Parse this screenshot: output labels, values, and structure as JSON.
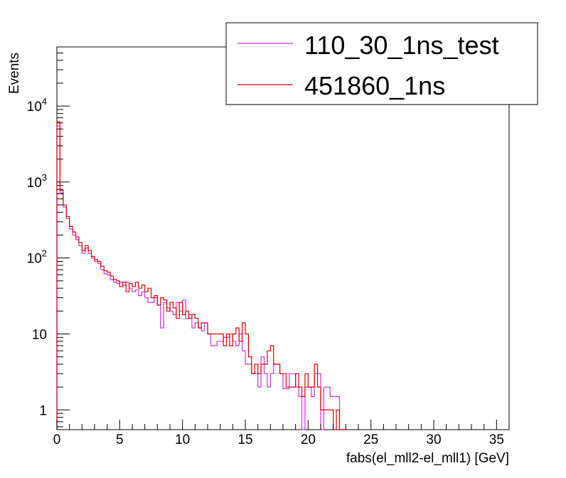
{
  "chart_data": {
    "type": "histogram",
    "title": "",
    "xlabel": "fabs(el_mll2-el_mll1) [GeV]",
    "ylabel": "Events",
    "xlim": [
      0,
      36
    ],
    "ylim": [
      0.55,
      60000
    ],
    "yscale": "log",
    "bin_width": 0.25,
    "grid": false,
    "legend_position": "top-right",
    "x_ticks": [
      {
        "value": 0,
        "label": "0"
      },
      {
        "value": 5,
        "label": "5"
      },
      {
        "value": 10,
        "label": "10"
      },
      {
        "value": 15,
        "label": "15"
      },
      {
        "value": 20,
        "label": "20"
      },
      {
        "value": 25,
        "label": "25"
      },
      {
        "value": 30,
        "label": "30"
      },
      {
        "value": 35,
        "label": "35"
      }
    ],
    "y_ticks": [
      {
        "value": 1,
        "base": "1",
        "exp": ""
      },
      {
        "value": 10,
        "base": "10",
        "exp": ""
      },
      {
        "value": 100,
        "base": "10",
        "exp": "2"
      },
      {
        "value": 1000,
        "base": "10",
        "exp": "3"
      },
      {
        "value": 10000,
        "base": "10",
        "exp": "4"
      }
    ],
    "series": [
      {
        "name": "110_30_1ns_test",
        "color": "#cc33dd",
        "values": [
          5500,
          720,
          470,
          330,
          240,
          200,
          175,
          145,
          115,
          135,
          115,
          100,
          90,
          85,
          70,
          62,
          60,
          52,
          48,
          46,
          48,
          44,
          48,
          40,
          36,
          38,
          32,
          36,
          30,
          26,
          26,
          30,
          24,
          12,
          26,
          22,
          20,
          18,
          26,
          20,
          28,
          16,
          18,
          12,
          14,
          12,
          11,
          14,
          10,
          7,
          7,
          8,
          8,
          9,
          9,
          10,
          8,
          7,
          10,
          6,
          4,
          4,
          3,
          3,
          2,
          5,
          3,
          2,
          3,
          4,
          4,
          3,
          1.9,
          1.9,
          3,
          3,
          2,
          1.5,
          0,
          2,
          2,
          1.5,
          3,
          3,
          0,
          2,
          2,
          1.5,
          1.5,
          1.5,
          0,
          0
        ]
      },
      {
        "name": "451860_1ns",
        "color": "#dd0000",
        "values": [
          6200,
          780,
          500,
          350,
          260,
          220,
          190,
          160,
          125,
          145,
          125,
          105,
          95,
          90,
          78,
          68,
          65,
          58,
          52,
          50,
          42,
          48,
          36,
          46,
          42,
          48,
          40,
          44,
          36,
          40,
          30,
          32,
          24,
          30,
          28,
          20,
          26,
          22,
          16,
          26,
          18,
          20,
          16,
          18,
          16,
          12,
          14,
          14,
          10,
          10,
          10,
          10,
          10,
          7,
          10,
          7,
          10,
          12,
          8,
          14,
          10,
          5,
          3,
          4,
          3,
          4,
          4,
          6,
          7,
          4,
          4,
          3,
          3,
          2,
          2,
          2,
          3,
          2,
          1.5,
          3,
          2,
          2,
          4,
          2,
          1,
          1,
          1,
          1,
          0,
          1,
          0,
          0
        ]
      }
    ]
  }
}
